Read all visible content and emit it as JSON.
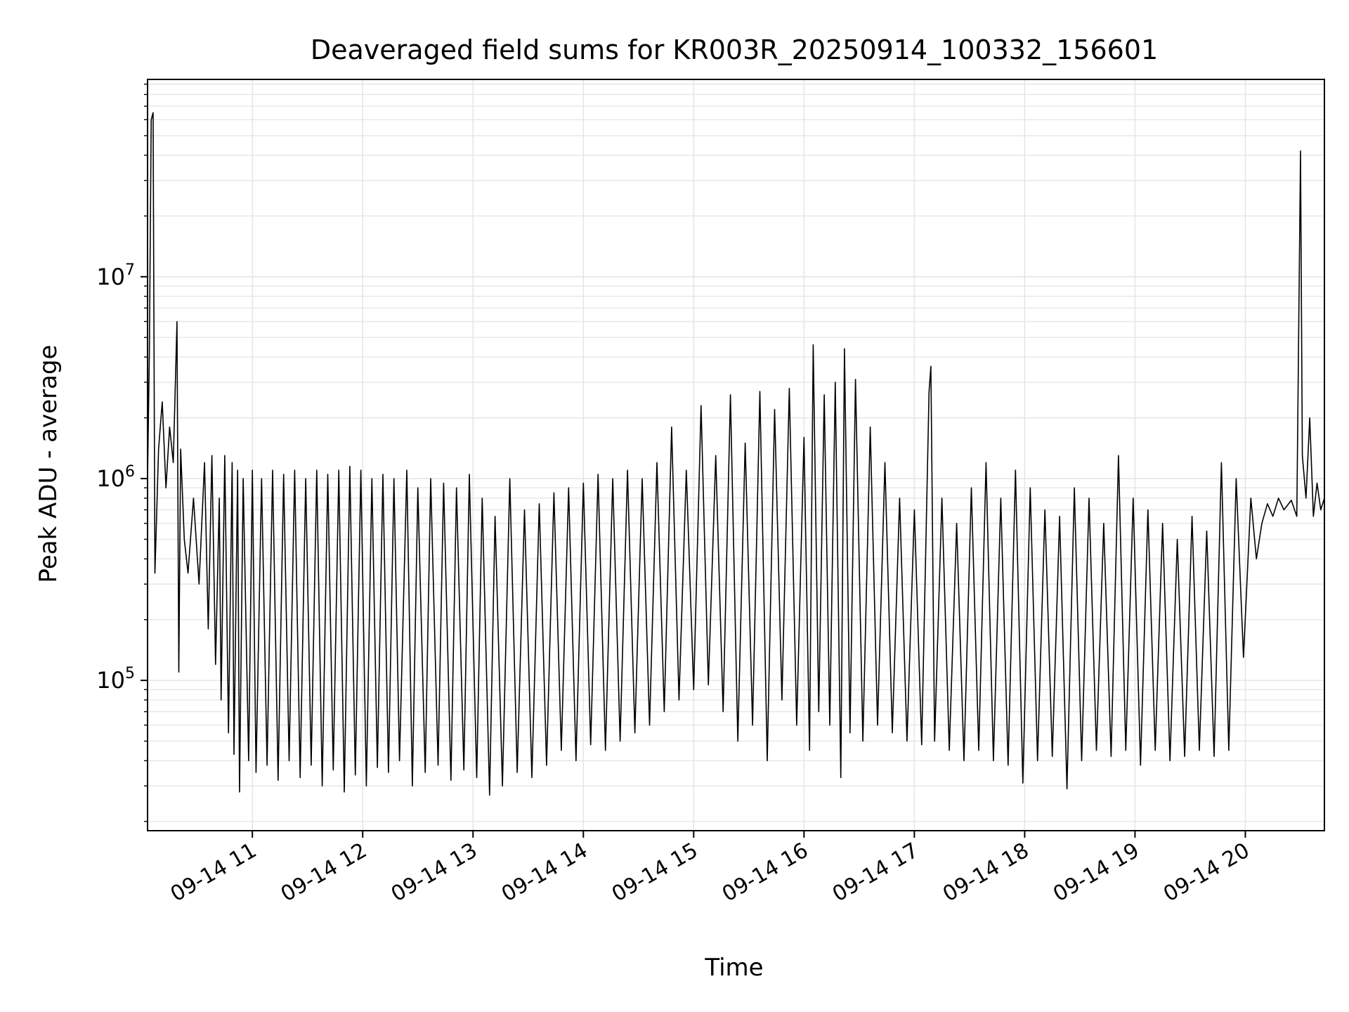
{
  "chart_data": {
    "type": "line",
    "title": "Deaveraged field sums for KR003R_20250914_100332_156601",
    "xlabel": "Time",
    "ylabel": "Peak ADU - average",
    "yscale": "log",
    "grid": true,
    "grid_minor": true,
    "line_color": "#000000",
    "grid_color": "#e6e6e6",
    "xlim": [
      "2025-09-14 10:03",
      "2025-09-14 20:43"
    ],
    "ylim": [
      18000,
      95000000
    ],
    "xticks": [
      {
        "time": "2025-09-14 11:00",
        "label": "09-14 11"
      },
      {
        "time": "2025-09-14 12:00",
        "label": "09-14 12"
      },
      {
        "time": "2025-09-14 13:00",
        "label": "09-14 13"
      },
      {
        "time": "2025-09-14 14:00",
        "label": "09-14 14"
      },
      {
        "time": "2025-09-14 15:00",
        "label": "09-14 15"
      },
      {
        "time": "2025-09-14 16:00",
        "label": "09-14 16"
      },
      {
        "time": "2025-09-14 17:00",
        "label": "09-14 17"
      },
      {
        "time": "2025-09-14 18:00",
        "label": "09-14 18"
      },
      {
        "time": "2025-09-14 19:00",
        "label": "09-14 19"
      },
      {
        "time": "2025-09-14 20:00",
        "label": "09-14 20"
      }
    ],
    "yticks": [
      {
        "value": 100000,
        "base": "10",
        "exp": "5"
      },
      {
        "value": 1000000,
        "base": "10",
        "exp": "6"
      },
      {
        "value": 10000000,
        "base": "10",
        "exp": "7"
      }
    ],
    "series": [
      {
        "points": [
          [
            "2025-09-14 10:03",
            1000000
          ],
          [
            "2025-09-14 10:04",
            4200000
          ],
          [
            "2025-09-14 10:05",
            60000000
          ],
          [
            "2025-09-14 10:06",
            65000000
          ],
          [
            "2025-09-14 10:07",
            340000
          ],
          [
            "2025-09-14 10:09",
            1400000
          ],
          [
            "2025-09-14 10:11",
            2400000
          ],
          [
            "2025-09-14 10:13",
            900000
          ],
          [
            "2025-09-14 10:15",
            1800000
          ],
          [
            "2025-09-14 10:17",
            1200000
          ],
          [
            "2025-09-14 10:19",
            6000000
          ],
          [
            "2025-09-14 10:20",
            110000
          ],
          [
            "2025-09-14 10:21",
            1400000
          ],
          [
            "2025-09-14 10:23",
            500000
          ],
          [
            "2025-09-14 10:25",
            340000
          ],
          [
            "2025-09-14 10:28",
            800000
          ],
          [
            "2025-09-14 10:31",
            300000
          ],
          [
            "2025-09-14 10:34",
            1200000
          ],
          [
            "2025-09-14 10:36",
            180000
          ],
          [
            "2025-09-14 10:38",
            1300000
          ],
          [
            "2025-09-14 10:40",
            120000
          ],
          [
            "2025-09-14 10:42",
            800000
          ],
          [
            "2025-09-14 10:43",
            80000
          ],
          [
            "2025-09-14 10:45",
            1300000
          ],
          [
            "2025-09-14 10:47",
            55000
          ],
          [
            "2025-09-14 10:49",
            1200000
          ],
          [
            "2025-09-14 10:50",
            43000
          ],
          [
            "2025-09-14 10:52",
            1100000
          ],
          [
            "2025-09-14 10:53",
            28000
          ],
          [
            "2025-09-14 10:55",
            1000000
          ],
          [
            "2025-09-14 10:58",
            40000
          ],
          [
            "2025-09-14 11:00",
            1100000
          ],
          [
            "2025-09-14 11:02",
            35000
          ],
          [
            "2025-09-14 11:05",
            1000000
          ],
          [
            "2025-09-14 11:08",
            38000
          ],
          [
            "2025-09-14 11:11",
            1100000
          ],
          [
            "2025-09-14 11:14",
            32000
          ],
          [
            "2025-09-14 11:17",
            1050000
          ],
          [
            "2025-09-14 11:20",
            40000
          ],
          [
            "2025-09-14 11:23",
            1100000
          ],
          [
            "2025-09-14 11:26",
            33000
          ],
          [
            "2025-09-14 11:29",
            1000000
          ],
          [
            "2025-09-14 11:32",
            38000
          ],
          [
            "2025-09-14 11:35",
            1100000
          ],
          [
            "2025-09-14 11:38",
            30000
          ],
          [
            "2025-09-14 11:41",
            1050000
          ],
          [
            "2025-09-14 11:44",
            36000
          ],
          [
            "2025-09-14 11:47",
            1100000
          ],
          [
            "2025-09-14 11:50",
            28000
          ],
          [
            "2025-09-14 11:53",
            1150000
          ],
          [
            "2025-09-14 11:56",
            34000
          ],
          [
            "2025-09-14 11:59",
            1100000
          ],
          [
            "2025-09-14 12:02",
            30000
          ],
          [
            "2025-09-14 12:05",
            1000000
          ],
          [
            "2025-09-14 12:08",
            37000
          ],
          [
            "2025-09-14 12:11",
            1050000
          ],
          [
            "2025-09-14 12:14",
            35000
          ],
          [
            "2025-09-14 12:17",
            1000000
          ],
          [
            "2025-09-14 12:20",
            40000
          ],
          [
            "2025-09-14 12:24",
            1100000
          ],
          [
            "2025-09-14 12:27",
            30000
          ],
          [
            "2025-09-14 12:30",
            900000
          ],
          [
            "2025-09-14 12:34",
            35000
          ],
          [
            "2025-09-14 12:37",
            1000000
          ],
          [
            "2025-09-14 12:41",
            38000
          ],
          [
            "2025-09-14 12:44",
            950000
          ],
          [
            "2025-09-14 12:48",
            32000
          ],
          [
            "2025-09-14 12:51",
            900000
          ],
          [
            "2025-09-14 12:55",
            36000
          ],
          [
            "2025-09-14 12:58",
            1050000
          ],
          [
            "2025-09-14 13:02",
            33000
          ],
          [
            "2025-09-14 13:05",
            800000
          ],
          [
            "2025-09-14 13:09",
            27000
          ],
          [
            "2025-09-14 13:12",
            650000
          ],
          [
            "2025-09-14 13:16",
            30000
          ],
          [
            "2025-09-14 13:20",
            1000000
          ],
          [
            "2025-09-14 13:24",
            35000
          ],
          [
            "2025-09-14 13:28",
            700000
          ],
          [
            "2025-09-14 13:32",
            33000
          ],
          [
            "2025-09-14 13:36",
            750000
          ],
          [
            "2025-09-14 13:40",
            38000
          ],
          [
            "2025-09-14 13:44",
            850000
          ],
          [
            "2025-09-14 13:48",
            45000
          ],
          [
            "2025-09-14 13:52",
            900000
          ],
          [
            "2025-09-14 13:56",
            40000
          ],
          [
            "2025-09-14 14:00",
            950000
          ],
          [
            "2025-09-14 14:04",
            48000
          ],
          [
            "2025-09-14 14:08",
            1050000
          ],
          [
            "2025-09-14 14:12",
            45000
          ],
          [
            "2025-09-14 14:16",
            1000000
          ],
          [
            "2025-09-14 14:20",
            50000
          ],
          [
            "2025-09-14 14:24",
            1100000
          ],
          [
            "2025-09-14 14:28",
            55000
          ],
          [
            "2025-09-14 14:32",
            1000000
          ],
          [
            "2025-09-14 14:36",
            60000
          ],
          [
            "2025-09-14 14:40",
            1200000
          ],
          [
            "2025-09-14 14:44",
            70000
          ],
          [
            "2025-09-14 14:48",
            1800000
          ],
          [
            "2025-09-14 14:52",
            80000
          ],
          [
            "2025-09-14 14:56",
            1100000
          ],
          [
            "2025-09-14 15:00",
            90000
          ],
          [
            "2025-09-14 15:04",
            2300000
          ],
          [
            "2025-09-14 15:08",
            95000
          ],
          [
            "2025-09-14 15:12",
            1300000
          ],
          [
            "2025-09-14 15:16",
            70000
          ],
          [
            "2025-09-14 15:20",
            2600000
          ],
          [
            "2025-09-14 15:24",
            50000
          ],
          [
            "2025-09-14 15:28",
            1500000
          ],
          [
            "2025-09-14 15:32",
            60000
          ],
          [
            "2025-09-14 15:36",
            2700000
          ],
          [
            "2025-09-14 15:40",
            40000
          ],
          [
            "2025-09-14 15:44",
            2200000
          ],
          [
            "2025-09-14 15:48",
            80000
          ],
          [
            "2025-09-14 15:52",
            2800000
          ],
          [
            "2025-09-14 15:56",
            60000
          ],
          [
            "2025-09-14 16:00",
            1600000
          ],
          [
            "2025-09-14 16:03",
            45000
          ],
          [
            "2025-09-14 16:05",
            4600000
          ],
          [
            "2025-09-14 16:08",
            70000
          ],
          [
            "2025-09-14 16:11",
            2600000
          ],
          [
            "2025-09-14 16:14",
            60000
          ],
          [
            "2025-09-14 16:17",
            3000000
          ],
          [
            "2025-09-14 16:20",
            33000
          ],
          [
            "2025-09-14 16:22",
            4400000
          ],
          [
            "2025-09-14 16:25",
            55000
          ],
          [
            "2025-09-14 16:28",
            3100000
          ],
          [
            "2025-09-14 16:32",
            50000
          ],
          [
            "2025-09-14 16:36",
            1800000
          ],
          [
            "2025-09-14 16:40",
            60000
          ],
          [
            "2025-09-14 16:44",
            1200000
          ],
          [
            "2025-09-14 16:48",
            55000
          ],
          [
            "2025-09-14 16:52",
            800000
          ],
          [
            "2025-09-14 16:56",
            50000
          ],
          [
            "2025-09-14 17:00",
            700000
          ],
          [
            "2025-09-14 17:04",
            48000
          ],
          [
            "2025-09-14 17:08",
            2700000
          ],
          [
            "2025-09-14 17:09",
            3600000
          ],
          [
            "2025-09-14 17:11",
            50000
          ],
          [
            "2025-09-14 17:15",
            800000
          ],
          [
            "2025-09-14 17:19",
            45000
          ],
          [
            "2025-09-14 17:23",
            600000
          ],
          [
            "2025-09-14 17:27",
            40000
          ],
          [
            "2025-09-14 17:31",
            900000
          ],
          [
            "2025-09-14 17:35",
            45000
          ],
          [
            "2025-09-14 17:39",
            1200000
          ],
          [
            "2025-09-14 17:43",
            40000
          ],
          [
            "2025-09-14 17:47",
            800000
          ],
          [
            "2025-09-14 17:51",
            38000
          ],
          [
            "2025-09-14 17:55",
            1100000
          ],
          [
            "2025-09-14 17:59",
            31000
          ],
          [
            "2025-09-14 18:03",
            900000
          ],
          [
            "2025-09-14 18:07",
            40000
          ],
          [
            "2025-09-14 18:11",
            700000
          ],
          [
            "2025-09-14 18:15",
            42000
          ],
          [
            "2025-09-14 18:19",
            650000
          ],
          [
            "2025-09-14 18:23",
            29000
          ],
          [
            "2025-09-14 18:27",
            900000
          ],
          [
            "2025-09-14 18:31",
            40000
          ],
          [
            "2025-09-14 18:35",
            800000
          ],
          [
            "2025-09-14 18:39",
            45000
          ],
          [
            "2025-09-14 18:43",
            600000
          ],
          [
            "2025-09-14 18:47",
            42000
          ],
          [
            "2025-09-14 18:51",
            1300000
          ],
          [
            "2025-09-14 18:55",
            45000
          ],
          [
            "2025-09-14 18:59",
            800000
          ],
          [
            "2025-09-14 19:03",
            38000
          ],
          [
            "2025-09-14 19:07",
            700000
          ],
          [
            "2025-09-14 19:11",
            45000
          ],
          [
            "2025-09-14 19:15",
            600000
          ],
          [
            "2025-09-14 19:19",
            40000
          ],
          [
            "2025-09-14 19:23",
            500000
          ],
          [
            "2025-09-14 19:27",
            42000
          ],
          [
            "2025-09-14 19:31",
            650000
          ],
          [
            "2025-09-14 19:35",
            45000
          ],
          [
            "2025-09-14 19:39",
            550000
          ],
          [
            "2025-09-14 19:43",
            42000
          ],
          [
            "2025-09-14 19:47",
            1200000
          ],
          [
            "2025-09-14 19:51",
            45000
          ],
          [
            "2025-09-14 19:55",
            1000000
          ],
          [
            "2025-09-14 19:59",
            130000
          ],
          [
            "2025-09-14 20:03",
            800000
          ],
          [
            "2025-09-14 20:06",
            400000
          ],
          [
            "2025-09-14 20:09",
            600000
          ],
          [
            "2025-09-14 20:12",
            750000
          ],
          [
            "2025-09-14 20:15",
            650000
          ],
          [
            "2025-09-14 20:18",
            800000
          ],
          [
            "2025-09-14 20:21",
            700000
          ],
          [
            "2025-09-14 20:25",
            780000
          ],
          [
            "2025-09-14 20:28",
            650000
          ],
          [
            "2025-09-14 20:30",
            42000000
          ],
          [
            "2025-09-14 20:31",
            1300000
          ],
          [
            "2025-09-14 20:33",
            800000
          ],
          [
            "2025-09-14 20:35",
            2000000
          ],
          [
            "2025-09-14 20:37",
            650000
          ],
          [
            "2025-09-14 20:39",
            950000
          ],
          [
            "2025-09-14 20:41",
            700000
          ],
          [
            "2025-09-14 20:43",
            800000
          ]
        ]
      }
    ]
  }
}
